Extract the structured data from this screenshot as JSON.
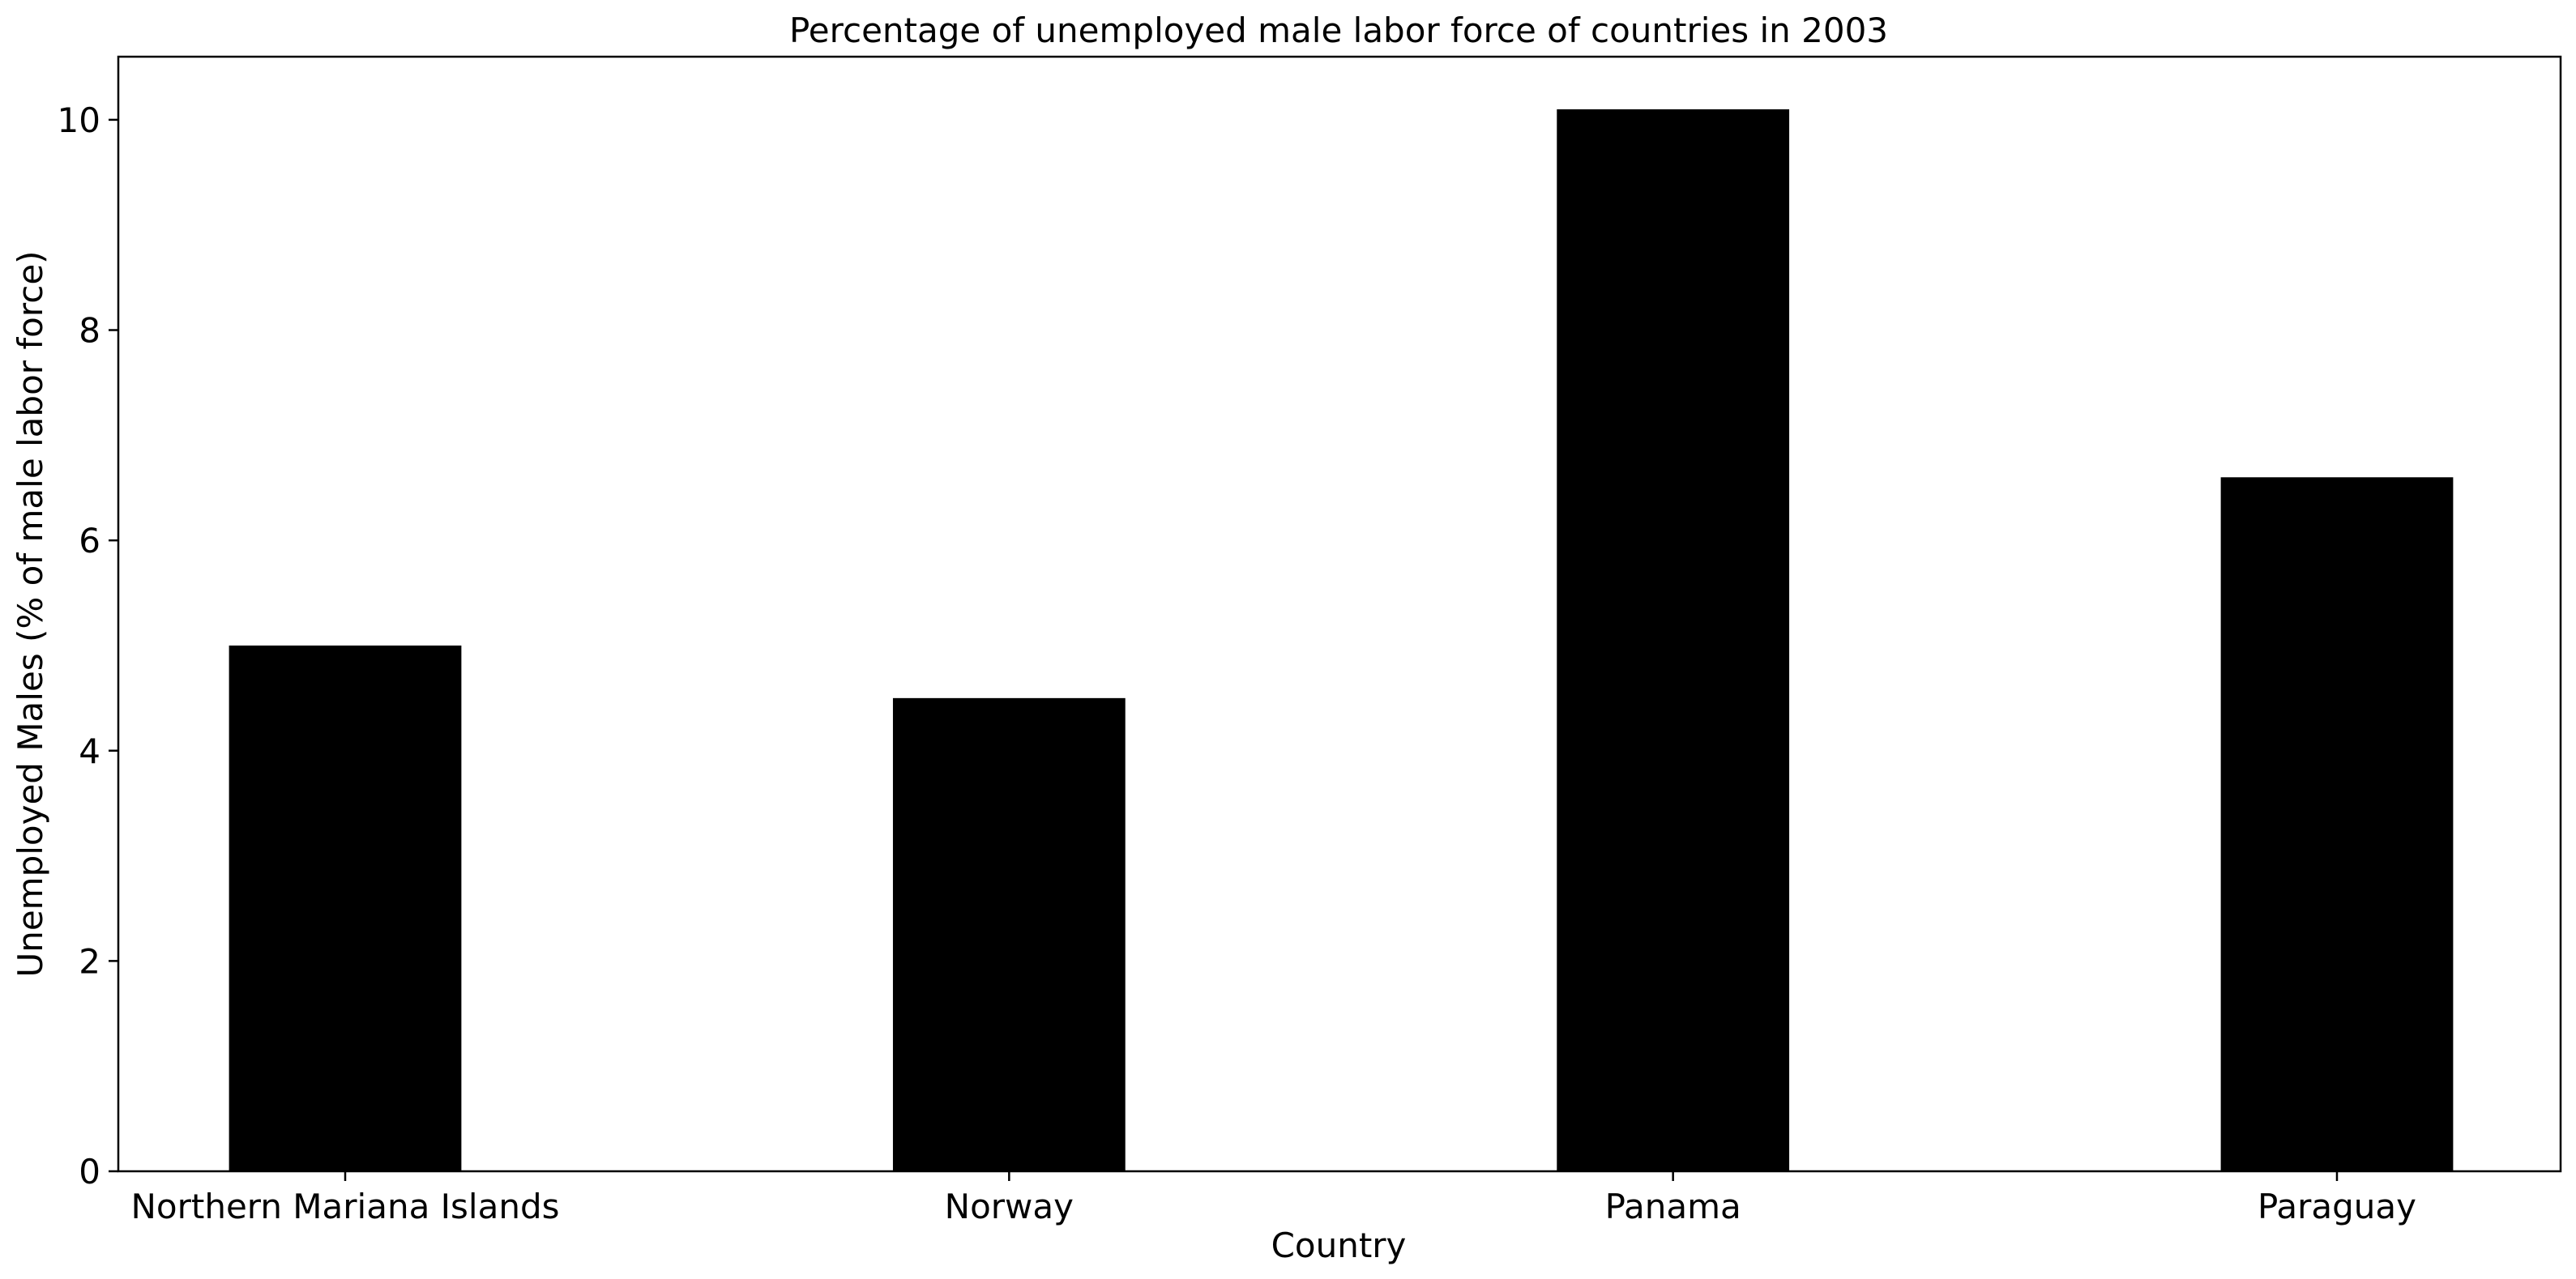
{
  "chart_data": {
    "type": "bar",
    "title": "Percentage of unemployed male labor force of countries in 2003",
    "xlabel": "Country",
    "ylabel": "Unemployed Males (% of male labor force)",
    "categories": [
      "Northern Mariana Islands",
      "Norway",
      "Panama",
      "Paraguay"
    ],
    "values": [
      5.0,
      4.5,
      10.1,
      6.6
    ],
    "ylim": [
      0,
      10.6
    ],
    "yticks": [
      0,
      2,
      4,
      6,
      8,
      10
    ],
    "bar_color": "#000000",
    "grid": false,
    "legend": "none"
  }
}
